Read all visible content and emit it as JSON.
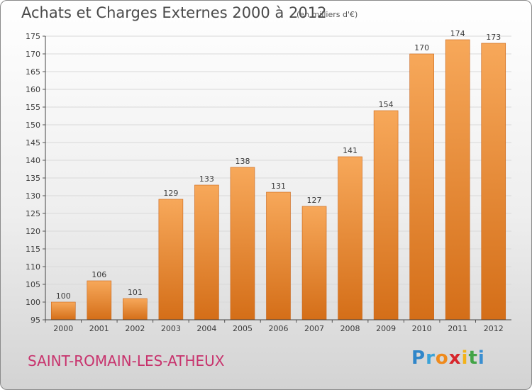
{
  "header": {
    "title": "Achats et Charges Externes 2000 à 2012",
    "unit": "(en milliers d'€)"
  },
  "footer": {
    "commune": "SAINT-ROMAIN-LES-ATHEUX",
    "logo_letters": [
      {
        "ch": "P",
        "color": "#2f86c9"
      },
      {
        "ch": "r",
        "color": "#3aa3d8"
      },
      {
        "ch": "o",
        "color": "#ef8a1c"
      },
      {
        "ch": "x",
        "color": "#d7262c"
      },
      {
        "ch": "i",
        "color": "#f2b21a"
      },
      {
        "ch": "t",
        "color": "#43a447"
      },
      {
        "ch": "i",
        "color": "#3a8fd1"
      }
    ]
  },
  "colors": {
    "bar_top": "#f7a85a",
    "bar_bottom": "#d46e18",
    "grid": "#d9d9d9"
  },
  "chart_data": {
    "type": "bar",
    "title": "Achats et Charges Externes 2000 à 2012",
    "subtitle": "(en milliers d'€)",
    "categories": [
      "2000",
      "2001",
      "2002",
      "2003",
      "2004",
      "2005",
      "2006",
      "2007",
      "2008",
      "2009",
      "2010",
      "2011",
      "2012"
    ],
    "values": [
      100,
      106,
      101,
      129,
      133,
      138,
      131,
      127,
      141,
      154,
      170,
      174,
      173
    ],
    "ylim": [
      95,
      175
    ],
    "yticks": [
      95,
      100,
      105,
      110,
      115,
      120,
      125,
      130,
      135,
      140,
      145,
      150,
      155,
      160,
      165,
      170,
      175
    ],
    "grid": true
  }
}
